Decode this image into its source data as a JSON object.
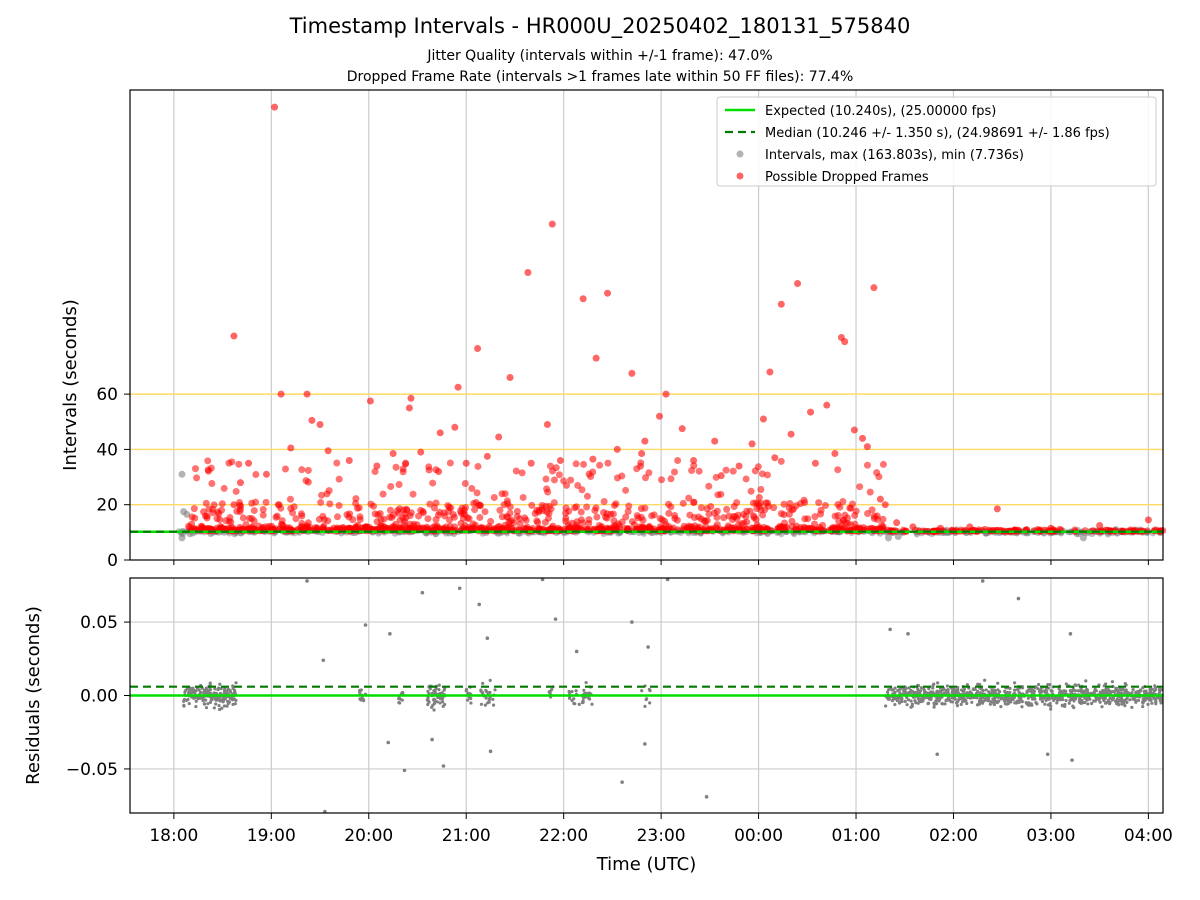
{
  "title": "Timestamp Intervals - HR000U_20250402_180131_575840",
  "subtitle_1": "Jitter Quality (intervals within +/-1 frame): 47.0%",
  "subtitle_2": "Dropped Frame Rate (intervals >1 frames late within 50 FF files): 77.4%",
  "colors": {
    "expected": "#00e000",
    "median": "#007a00",
    "intervals": "#808080",
    "dropped": "#ff0000",
    "threshold": "#ffd966",
    "grid": "#cccccc"
  },
  "chart_data": [
    {
      "type": "scatter",
      "panel": "top",
      "ylabel": "Intervals (seconds)",
      "ylim": [
        0,
        170
      ],
      "yticks": [
        "0",
        "20",
        "40",
        "60"
      ],
      "xlabel": "",
      "xlim_hours": [
        17.55,
        28.15
      ],
      "grid": true,
      "legend_position": "top-right",
      "threshold_lines": [
        20,
        40,
        60
      ],
      "expected_interval": 10.24,
      "median_interval": 10.246,
      "legend": [
        {
          "name": "Expected (10.240s), (25.00000 fps)",
          "kind": "solid-line"
        },
        {
          "name": "Median (10.246 +/- 1.350 s), (24.98691 +/- 1.86 fps)",
          "kind": "dashed-line"
        },
        {
          "name": "Intervals, max (163.803s), min (7.736s)",
          "kind": "grey-dot"
        },
        {
          "name": "Possible Dropped Frames",
          "kind": "red-dot"
        }
      ],
      "series": [
        {
          "name": "Possible Dropped Frames",
          "points": [
            {
              "x": "19:02",
              "y": 163.8
            },
            {
              "x": "21:53",
              "y": 121.5
            },
            {
              "x": "21:38",
              "y": 104
            },
            {
              "x": "22:27",
              "y": 96.5
            },
            {
              "x": "22:12",
              "y": 94.5
            },
            {
              "x": "00:24",
              "y": 100
            },
            {
              "x": "00:14",
              "y": 92.5
            },
            {
              "x": "01:11",
              "y": 98.5
            },
            {
              "x": "18:37",
              "y": 81
            },
            {
              "x": "21:07",
              "y": 76.5
            },
            {
              "x": "22:20",
              "y": 73
            },
            {
              "x": "22:42",
              "y": 67.5
            },
            {
              "x": "00:07",
              "y": 68
            },
            {
              "x": "00:51",
              "y": 80.5
            },
            {
              "x": "00:53",
              "y": 79
            },
            {
              "x": "21:27",
              "y": 66
            },
            {
              "x": "20:55",
              "y": 62.5
            },
            {
              "x": "19:06",
              "y": 60
            },
            {
              "x": "19:22",
              "y": 60
            },
            {
              "x": "23:03",
              "y": 60
            },
            {
              "x": "20:01",
              "y": 57.5
            },
            {
              "x": "20:26",
              "y": 58.5
            },
            {
              "x": "20:25",
              "y": 55
            },
            {
              "x": "22:59",
              "y": 52
            },
            {
              "x": "00:42",
              "y": 56
            },
            {
              "x": "00:32",
              "y": 53.5
            },
            {
              "x": "21:50",
              "y": 49
            },
            {
              "x": "23:13",
              "y": 47.5
            },
            {
              "x": "20:53",
              "y": 48
            },
            {
              "x": "00:03",
              "y": 51
            },
            {
              "x": "19:30",
              "y": 49
            },
            {
              "x": "19:25",
              "y": 50.5
            },
            {
              "x": "00:59",
              "y": 47
            },
            {
              "x": "01:04",
              "y": 44
            },
            {
              "x": "22:50",
              "y": 43
            },
            {
              "x": "21:20",
              "y": 44.5
            },
            {
              "x": "23:33",
              "y": 43
            },
            {
              "x": "20:44",
              "y": 46
            },
            {
              "x": "00:20",
              "y": 45.5
            },
            {
              "x": "18:37",
              "y": 20
            },
            {
              "x": "18:41",
              "y": 28
            },
            {
              "x": "18:46",
              "y": 35
            },
            {
              "x": "18:57",
              "y": 31
            },
            {
              "x": "19:12",
              "y": 40.5
            },
            {
              "x": "19:35",
              "y": 39.5
            },
            {
              "x": "19:48",
              "y": 36
            },
            {
              "x": "20:05",
              "y": 34
            },
            {
              "x": "20:15",
              "y": 38.5
            },
            {
              "x": "20:32",
              "y": 39
            },
            {
              "x": "20:43",
              "y": 32
            },
            {
              "x": "21:00",
              "y": 35
            },
            {
              "x": "21:13",
              "y": 37.5
            },
            {
              "x": "21:40",
              "y": 35
            },
            {
              "x": "21:58",
              "y": 36
            },
            {
              "x": "22:18",
              "y": 36.5
            },
            {
              "x": "22:33",
              "y": 40
            },
            {
              "x": "22:48",
              "y": 38.5
            },
            {
              "x": "23:20",
              "y": 36
            },
            {
              "x": "23:37",
              "y": 30.5
            },
            {
              "x": "23:48",
              "y": 34
            },
            {
              "x": "23:56",
              "y": 42
            },
            {
              "x": "00:10",
              "y": 37
            },
            {
              "x": "00:35",
              "y": 35
            },
            {
              "x": "00:47",
              "y": 38.5
            },
            {
              "x": "01:07",
              "y": 41
            },
            {
              "x": "01:15",
              "y": 22
            },
            {
              "x": "01:18",
              "y": 20
            },
            {
              "x": "01:25",
              "y": 13.5
            },
            {
              "x": "01:35",
              "y": 12
            },
            {
              "x": "01:52",
              "y": 11.5
            },
            {
              "x": "02:27",
              "y": 18.5
            },
            {
              "x": "02:10",
              "y": 12
            },
            {
              "x": "03:00",
              "y": 11.5
            },
            {
              "x": "03:30",
              "y": 12.5
            },
            {
              "x": "04:00",
              "y": 14.5
            }
          ]
        },
        {
          "name": "Intervals",
          "points": [
            {
              "x": "18:05",
              "y": 31
            },
            {
              "x": "18:06",
              "y": 17.5
            },
            {
              "x": "18:08",
              "y": 16.5
            },
            {
              "x": "18:05",
              "y": 8
            },
            {
              "x": "18:10",
              "y": 9.5
            },
            {
              "x": "01:20",
              "y": 8
            },
            {
              "x": "01:26",
              "y": 8.5
            },
            {
              "x": "03:20",
              "y": 8
            },
            {
              "x": "03:40",
              "y": 11
            },
            {
              "x": "03:55",
              "y": 10.5
            }
          ]
        }
      ]
    },
    {
      "type": "scatter",
      "panel": "bottom",
      "ylabel": "Residuals (seconds)",
      "xlabel": "Time (UTC)",
      "ylim": [
        -0.08,
        0.08
      ],
      "yticks": [
        "−0.05",
        "0.00",
        "0.05"
      ],
      "xticks": [
        "18:00",
        "19:00",
        "20:00",
        "21:00",
        "22:00",
        "23:00",
        "00:00",
        "01:00",
        "02:00",
        "03:00",
        "04:00"
      ],
      "grid": true,
      "expected_residual": 0.0,
      "median_residual": 0.006,
      "series": [
        {
          "name": "Residuals",
          "points": [
            {
              "x": "19:22",
              "y": 0.078
            },
            {
              "x": "21:47",
              "y": 0.079
            },
            {
              "x": "23:04",
              "y": 0.079
            },
            {
              "x": "02:18",
              "y": 0.078
            },
            {
              "x": "20:33",
              "y": 0.07
            },
            {
              "x": "20:56",
              "y": 0.073
            },
            {
              "x": "21:08",
              "y": 0.062
            },
            {
              "x": "21:55",
              "y": 0.052
            },
            {
              "x": "22:42",
              "y": 0.05
            },
            {
              "x": "02:40",
              "y": 0.066
            },
            {
              "x": "19:33",
              "y": -0.079
            },
            {
              "x": "20:22",
              "y": -0.051
            },
            {
              "x": "20:46",
              "y": -0.048
            },
            {
              "x": "22:36",
              "y": -0.059
            },
            {
              "x": "23:28",
              "y": -0.069
            },
            {
              "x": "02:58",
              "y": -0.04
            },
            {
              "x": "03:13",
              "y": -0.044
            },
            {
              "x": "01:50",
              "y": -0.04
            },
            {
              "x": "19:58",
              "y": 0.048
            },
            {
              "x": "19:32",
              "y": 0.024
            },
            {
              "x": "20:13",
              "y": 0.042
            },
            {
              "x": "21:13",
              "y": 0.039
            },
            {
              "x": "22:08",
              "y": 0.03
            },
            {
              "x": "22:52",
              "y": 0.033
            },
            {
              "x": "20:12",
              "y": -0.032
            },
            {
              "x": "20:39",
              "y": -0.03
            },
            {
              "x": "21:15",
              "y": -0.038
            },
            {
              "x": "22:50",
              "y": -0.033
            },
            {
              "x": "01:21",
              "y": 0.045
            },
            {
              "x": "01:32",
              "y": 0.042
            },
            {
              "x": "03:12",
              "y": 0.042
            }
          ]
        }
      ]
    }
  ]
}
